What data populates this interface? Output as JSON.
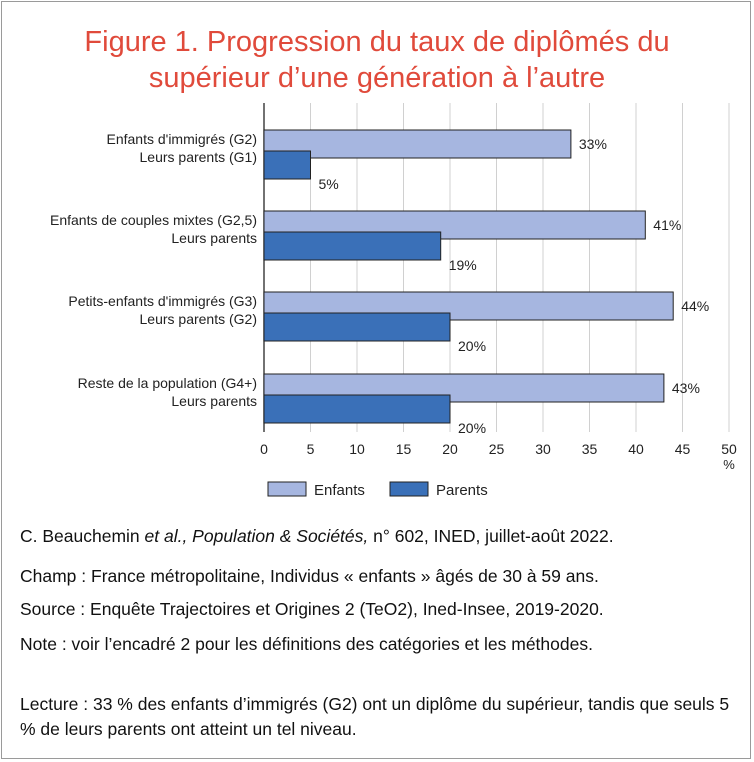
{
  "title_line1": "Figure 1. Progression du taux de diplômés du",
  "title_line2": "supérieur d’une génération à l’autre",
  "colors": {
    "title": "#e04a3b",
    "enfants": "#a6b6e0",
    "parents": "#3a70b8",
    "bar_stroke": "#222222"
  },
  "chart_data": {
    "type": "bar",
    "orientation": "horizontal",
    "categories": [
      {
        "enfants_label": "Enfants d'immigrés (G2)",
        "parents_label": "Leurs parents (G1)"
      },
      {
        "enfants_label": "Enfants de couples mixtes (G2,5)",
        "parents_label": "Leurs parents"
      },
      {
        "enfants_label": "Petits-enfants d'immigrés (G3)",
        "parents_label": "Leurs parents (G2)"
      },
      {
        "enfants_label": "Reste de la population (G4+)",
        "parents_label": "Leurs parents"
      }
    ],
    "series": [
      {
        "name": "Enfants",
        "values": [
          33,
          41,
          44,
          43
        ],
        "labels": [
          "33%",
          "41%",
          "44%",
          "43%"
        ]
      },
      {
        "name": "Parents",
        "values": [
          5,
          19,
          20,
          20
        ],
        "labels": [
          "5%",
          "19%",
          "20%",
          "20%"
        ]
      }
    ],
    "xlim": [
      0,
      50
    ],
    "xticks": [
      0,
      5,
      10,
      15,
      20,
      25,
      30,
      35,
      40,
      45,
      50
    ],
    "xunit": "%",
    "grid": true,
    "legend_position": "bottom"
  },
  "footer": {
    "citation_author": "C. Beauchemin ",
    "citation_italic": "et al., Population & Sociétés,",
    "citation_rest": " n° 602, INED, juillet-août 2022.",
    "champ": "Champ : France métropolitaine, Individus « enfants » âgés de 30 à 59 ans.",
    "source": "Source : Enquête Trajectoires et Origines 2 (TeO2), Ined-Insee, 2019-2020.",
    "note": "Note : voir l’encadré 2 pour les définitions des catégories et les méthodes.",
    "lecture": "Lecture : 33 % des enfants d’immigrés (G2) ont un diplôme du supérieur, tandis que seuls 5 % de leurs parents ont atteint un tel niveau."
  }
}
